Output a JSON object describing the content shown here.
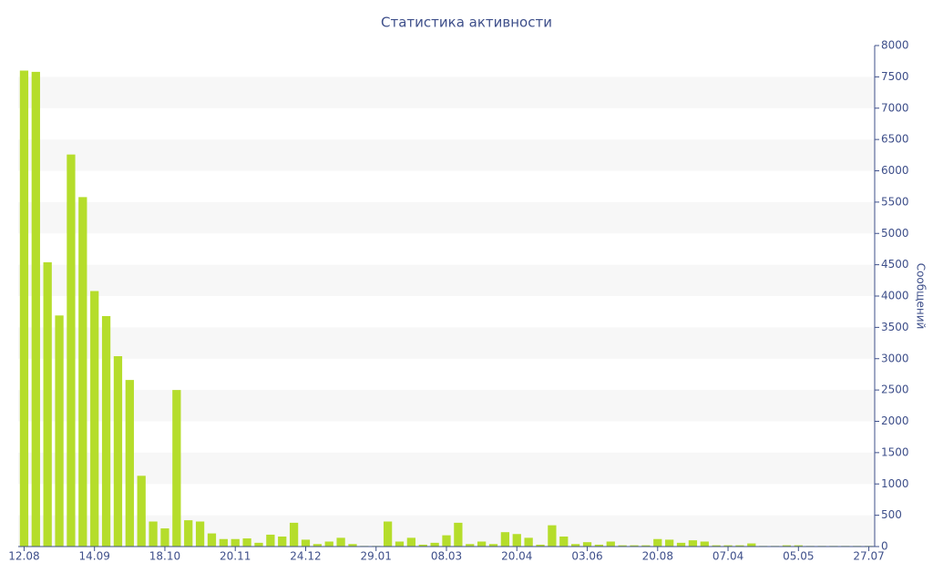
{
  "chart_data": {
    "type": "bar",
    "title": "Статистика активности",
    "y_label": "Сообщений",
    "categories": [
      "12.08",
      null,
      null,
      null,
      null,
      null,
      "14.09",
      null,
      null,
      null,
      null,
      null,
      "18.10",
      null,
      null,
      null,
      null,
      null,
      "20.11",
      null,
      null,
      null,
      null,
      null,
      "24.12",
      null,
      null,
      null,
      null,
      null,
      "29.01",
      null,
      null,
      null,
      null,
      null,
      "08.03",
      null,
      null,
      null,
      null,
      null,
      "20.04",
      null,
      null,
      null,
      null,
      null,
      "03.06",
      null,
      null,
      null,
      null,
      null,
      "20.08",
      null,
      null,
      null,
      null,
      null,
      "07.04",
      null,
      null,
      null,
      null,
      null,
      "05.05",
      null,
      null,
      null,
      null,
      null,
      "27.07"
    ],
    "values": [
      7600,
      7580,
      4540,
      3690,
      6260,
      5580,
      4080,
      3680,
      3040,
      2660,
      1130,
      400,
      290,
      2500,
      420,
      400,
      210,
      120,
      120,
      130,
      60,
      190,
      160,
      380,
      110,
      40,
      80,
      140,
      40,
      10,
      10,
      400,
      80,
      140,
      30,
      60,
      180,
      380,
      40,
      80,
      40,
      230,
      200,
      140,
      30,
      340,
      160,
      40,
      70,
      30,
      80,
      20,
      20,
      20,
      120,
      110,
      60,
      100,
      80,
      20,
      20,
      20,
      50,
      10,
      10,
      20,
      20,
      10,
      10,
      10,
      10,
      10,
      10
    ],
    "color": "#b5dd2b",
    "ylim": [
      0,
      8000
    ],
    "yticks": [
      0,
      500,
      1000,
      1500,
      2000,
      2500,
      3000,
      3500,
      4000,
      4500,
      5000,
      5500,
      6000,
      6500,
      7000,
      7500,
      8000
    ],
    "y_axis_side": "right",
    "grid": true
  }
}
